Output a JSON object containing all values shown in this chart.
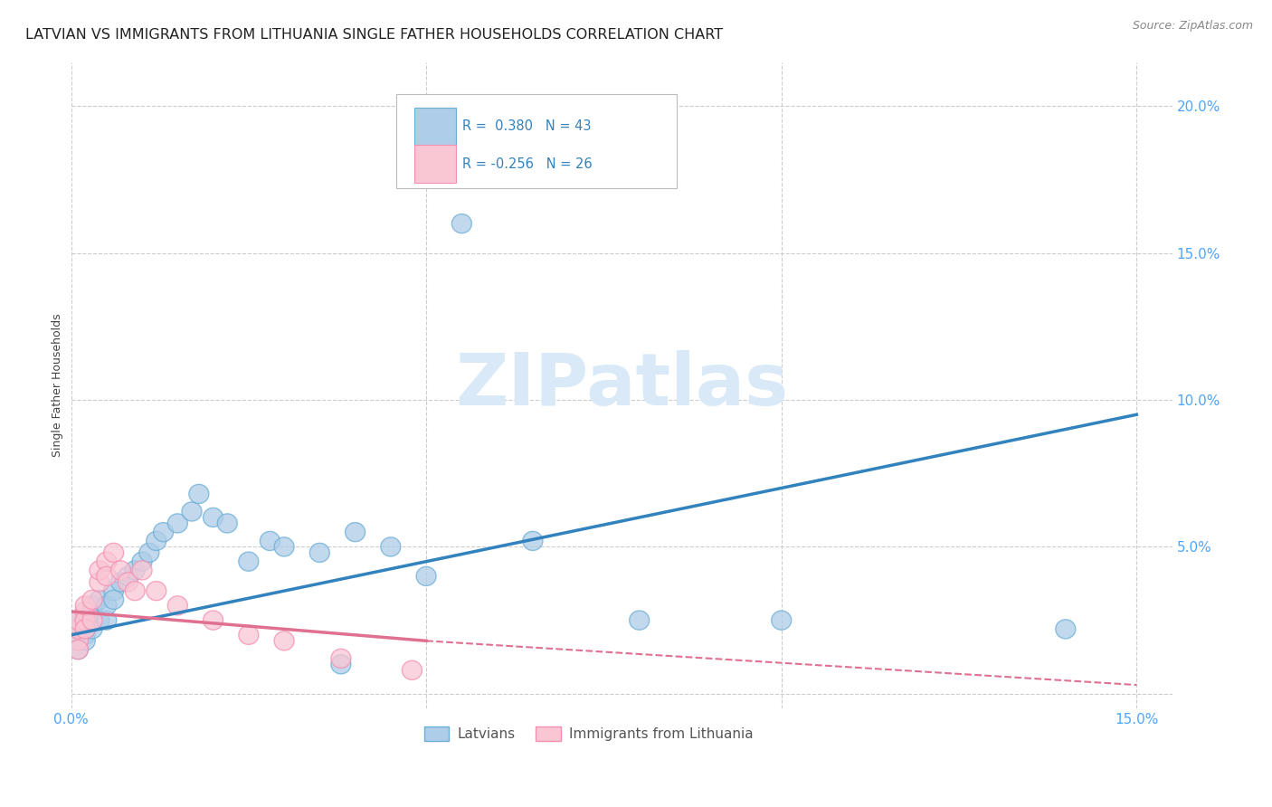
{
  "title": "LATVIAN VS IMMIGRANTS FROM LITHUANIA SINGLE FATHER HOUSEHOLDS CORRELATION CHART",
  "source": "Source: ZipAtlas.com",
  "ylabel": "Single Father Households",
  "xlim": [
    0.0,
    0.155
  ],
  "ylim": [
    -0.005,
    0.215
  ],
  "yticks": [
    0.0,
    0.05,
    0.1,
    0.15,
    0.2
  ],
  "xticks": [
    0.0,
    0.05,
    0.1,
    0.15
  ],
  "ytick_labels": [
    "",
    "5.0%",
    "10.0%",
    "15.0%",
    "20.0%"
  ],
  "xtick_labels": [
    "0.0%",
    "",
    "",
    "15.0%"
  ],
  "R1": 0.38,
  "N1": 43,
  "R2": -0.256,
  "N2": 26,
  "blue_scatter_face": "#aecde8",
  "blue_scatter_edge": "#6baed6",
  "pink_scatter_face": "#f9c6d4",
  "pink_scatter_edge": "#f48fb1",
  "blue_line_color": "#3182bd",
  "pink_line_color": "#e07090",
  "background_color": "#ffffff",
  "grid_color": "#cccccc",
  "watermark_color": "#d9e9f7",
  "tick_color": "#4da6ff",
  "title_fontsize": 11.5,
  "axis_label_fontsize": 9,
  "tick_fontsize": 11,
  "source_fontsize": 9,
  "latvian_x": [
    0.001,
    0.001,
    0.001,
    0.001,
    0.001,
    0.002,
    0.002,
    0.002,
    0.002,
    0.003,
    0.003,
    0.003,
    0.004,
    0.004,
    0.005,
    0.005,
    0.006,
    0.006,
    0.007,
    0.008,
    0.009,
    0.01,
    0.011,
    0.012,
    0.013,
    0.015,
    0.017,
    0.018,
    0.02,
    0.022,
    0.025,
    0.028,
    0.03,
    0.035,
    0.038,
    0.04,
    0.045,
    0.05,
    0.055,
    0.065,
    0.08,
    0.1,
    0.14
  ],
  "latvian_y": [
    0.02,
    0.022,
    0.018,
    0.025,
    0.015,
    0.025,
    0.02,
    0.018,
    0.022,
    0.028,
    0.022,
    0.03,
    0.025,
    0.032,
    0.025,
    0.03,
    0.035,
    0.032,
    0.038,
    0.04,
    0.042,
    0.045,
    0.048,
    0.052,
    0.055,
    0.058,
    0.062,
    0.068,
    0.06,
    0.058,
    0.045,
    0.052,
    0.05,
    0.048,
    0.01,
    0.055,
    0.05,
    0.04,
    0.16,
    0.052,
    0.025,
    0.025,
    0.022
  ],
  "lithuania_x": [
    0.001,
    0.001,
    0.001,
    0.001,
    0.002,
    0.002,
    0.002,
    0.002,
    0.003,
    0.003,
    0.004,
    0.004,
    0.005,
    0.005,
    0.006,
    0.007,
    0.008,
    0.009,
    0.01,
    0.012,
    0.015,
    0.02,
    0.025,
    0.03,
    0.038,
    0.048
  ],
  "lithuania_y": [
    0.018,
    0.022,
    0.025,
    0.015,
    0.028,
    0.025,
    0.022,
    0.03,
    0.032,
    0.025,
    0.038,
    0.042,
    0.045,
    0.04,
    0.048,
    0.042,
    0.038,
    0.035,
    0.042,
    0.035,
    0.03,
    0.025,
    0.02,
    0.018,
    0.012,
    0.008
  ],
  "legend1_label": "Latvians",
  "legend2_label": "Immigrants from Lithuania"
}
